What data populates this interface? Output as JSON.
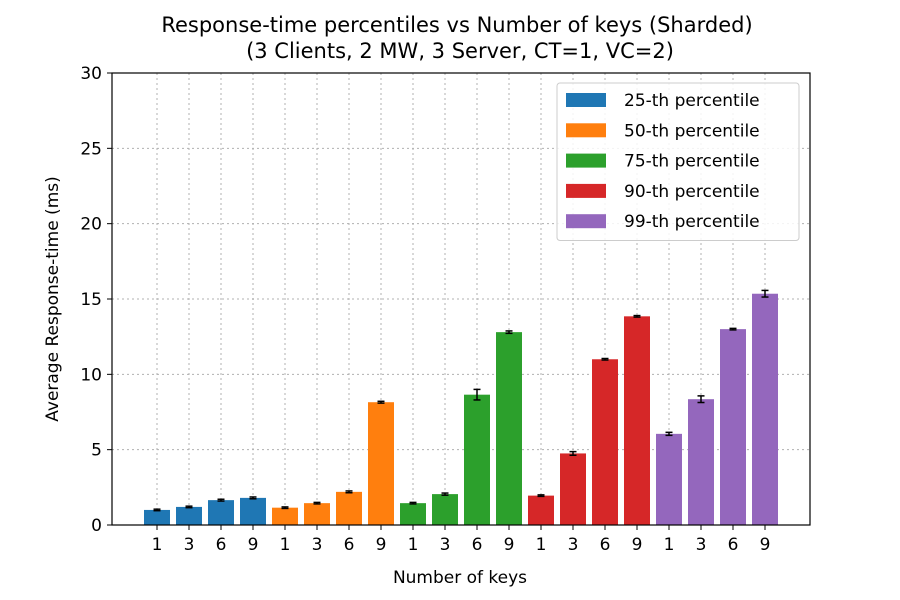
{
  "chart_data": {
    "type": "bar",
    "title_line1": "Response-time percentiles vs Number of keys (Sharded)",
    "title_line2": "(3 Clients, 2 MW, 3 Server, CT=1, VC=2)",
    "xlabel": "Number of keys",
    "ylabel": "Average Response-time (ms)",
    "ylim": [
      0,
      30
    ],
    "yticks": [
      0,
      5,
      10,
      15,
      20,
      25,
      30
    ],
    "grid": true,
    "legend_position": "top-right",
    "categories": [
      "1",
      "3",
      "6",
      "9"
    ],
    "series": [
      {
        "name": "25-th percentile",
        "color": "#1f77b4",
        "values": [
          1.0,
          1.2,
          1.65,
          1.8
        ],
        "errors": [
          0.05,
          0.05,
          0.06,
          0.06
        ]
      },
      {
        "name": "50-th percentile",
        "color": "#ff7f0e",
        "values": [
          1.15,
          1.45,
          2.2,
          8.15
        ],
        "errors": [
          0.05,
          0.05,
          0.06,
          0.06
        ]
      },
      {
        "name": "75-th percentile",
        "color": "#2ca02c",
        "values": [
          1.45,
          2.05,
          8.65,
          12.8
        ],
        "errors": [
          0.05,
          0.07,
          0.35,
          0.08
        ]
      },
      {
        "name": "90-th percentile",
        "color": "#d62728",
        "values": [
          1.95,
          4.75,
          11.0,
          13.85
        ],
        "errors": [
          0.05,
          0.12,
          0.05,
          0.05
        ]
      },
      {
        "name": "99-th percentile",
        "color": "#9467bd",
        "values": [
          6.05,
          8.35,
          13.0,
          15.35
        ],
        "errors": [
          0.1,
          0.22,
          0.05,
          0.22
        ]
      }
    ]
  }
}
